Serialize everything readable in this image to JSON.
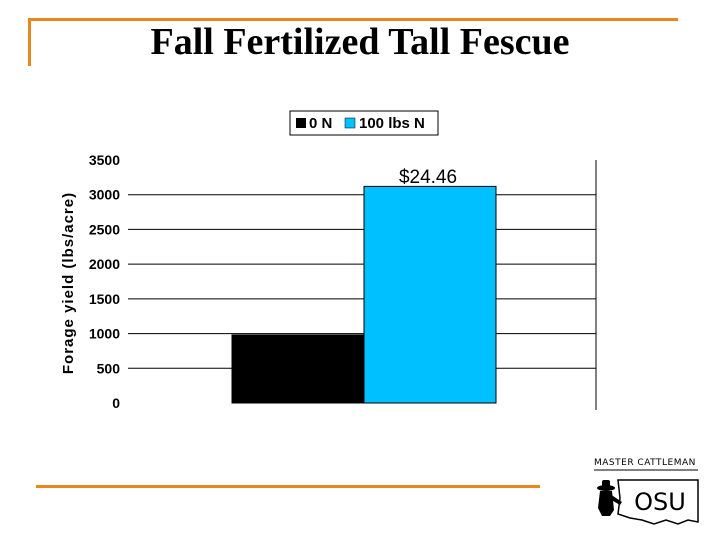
{
  "slide": {
    "title": "Fall Fertilized Tall Fescue"
  },
  "logo": {
    "text": "MASTER CATTLEMAN",
    "mark": "OSU"
  },
  "chart_data": {
    "type": "bar",
    "categories": [
      ""
    ],
    "series": [
      {
        "name": "0 N",
        "values": [
          980
        ],
        "color": "#000000"
      },
      {
        "name": "100 lbs N",
        "values": [
          3120
        ],
        "color": "#00c0ff"
      }
    ],
    "ylabel": "Forage yield (lbs/acre)",
    "xlabel": "",
    "ylim": [
      0,
      3500
    ],
    "yticks": [
      0,
      500,
      1000,
      1500,
      2000,
      2500,
      3000,
      3500
    ],
    "grid": true,
    "legend_position": "top",
    "annotation": "$24.46"
  },
  "colors": {
    "accent": "#e8871e"
  }
}
